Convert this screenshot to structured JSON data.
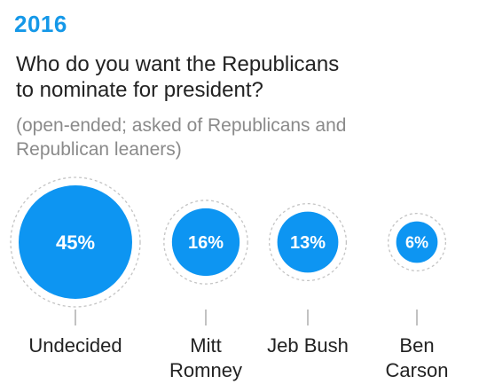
{
  "header": {
    "year": "2016",
    "question_lines": [
      "Who do you want the Republicans",
      "to nominate for president?"
    ],
    "note_lines": [
      "(open-ended; asked of Republicans and",
      "Republican leaners)"
    ]
  },
  "colors": {
    "accent": "#1598e8",
    "bubble": "#0d95f2",
    "ring": "#c4c4c4",
    "connector": "#9a9a9a",
    "text": "#222222",
    "note": "#8a8a8a"
  },
  "chart_data": {
    "type": "bubble",
    "unit": "%",
    "categories": [
      {
        "label_lines": [
          "Undecided"
        ],
        "value": 45,
        "value_label": "45%"
      },
      {
        "label_lines": [
          "Mitt",
          "Romney"
        ],
        "value": 16,
        "value_label": "16%"
      },
      {
        "label_lines": [
          "Jeb Bush"
        ],
        "value": 13,
        "value_label": "13%"
      },
      {
        "label_lines": [
          "Ben",
          "Carson"
        ],
        "value": 6,
        "value_label": "6%"
      }
    ]
  }
}
